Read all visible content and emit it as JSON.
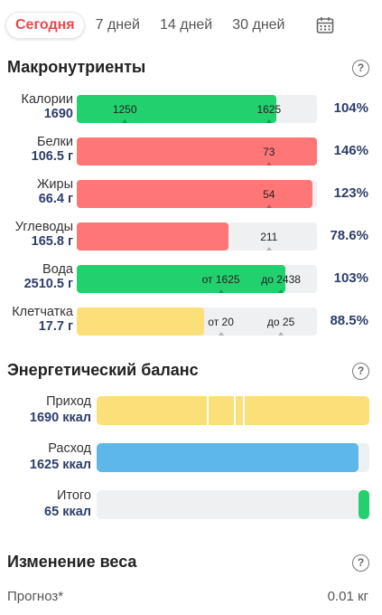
{
  "tabs": [
    {
      "label": "Сегодня",
      "active": true
    },
    {
      "label": "7 дней",
      "active": false
    },
    {
      "label": "14 дней",
      "active": false
    },
    {
      "label": "30 дней",
      "active": false
    }
  ],
  "macros": {
    "title": "Макронутриенты",
    "help": "?",
    "rows": [
      {
        "label": "Калории",
        "value": "1690",
        "percent": "104%",
        "fill": 0.83,
        "color": "green",
        "marks": [
          {
            "text": "1250",
            "at": 0.2
          },
          {
            "text": "1625",
            "at": 0.8
          }
        ]
      },
      {
        "label": "Белки",
        "value": "106.5 г",
        "percent": "146%",
        "fill": 1.0,
        "color": "red",
        "marks": [
          {
            "text": "73",
            "at": 0.8
          }
        ]
      },
      {
        "label": "Жиры",
        "value": "66.4 г",
        "percent": "123%",
        "fill": 0.98,
        "color": "red",
        "marks": [
          {
            "text": "54",
            "at": 0.8
          }
        ]
      },
      {
        "label": "Углеводы",
        "value": "165.8 г",
        "percent": "78.6%",
        "fill": 0.63,
        "color": "red",
        "marks": [
          {
            "text": "211",
            "at": 0.8
          }
        ]
      },
      {
        "label": "Вода",
        "value": "2510.5 г",
        "percent": "103%",
        "fill": 0.87,
        "color": "green",
        "marks": [
          {
            "text": "от 1625",
            "at": 0.6
          },
          {
            "text": "до 2438",
            "at": 0.85
          }
        ]
      },
      {
        "label": "Клетчатка",
        "value": "17.7 г",
        "percent": "88.5%",
        "fill": 0.53,
        "color": "yellow",
        "marks": [
          {
            "text": "от 20",
            "at": 0.6
          },
          {
            "text": "до 25",
            "at": 0.85
          }
        ]
      }
    ]
  },
  "energy": {
    "title": "Энергетический баланс",
    "help": "?",
    "rows": [
      {
        "label": "Приход",
        "value": "1690 ккал",
        "fill": 1.0,
        "color": "yellow"
      },
      {
        "label": "Расход",
        "value": "1625 ккал",
        "fill": 0.96,
        "color": "blue"
      },
      {
        "label": "Итого",
        "value": "65 ккал",
        "fill": 0.04,
        "color": "green"
      }
    ]
  },
  "weight": {
    "title": "Изменение веса",
    "help": "?",
    "forecast_label": "Прогноз*",
    "forecast_value": "0.01 кг"
  }
}
